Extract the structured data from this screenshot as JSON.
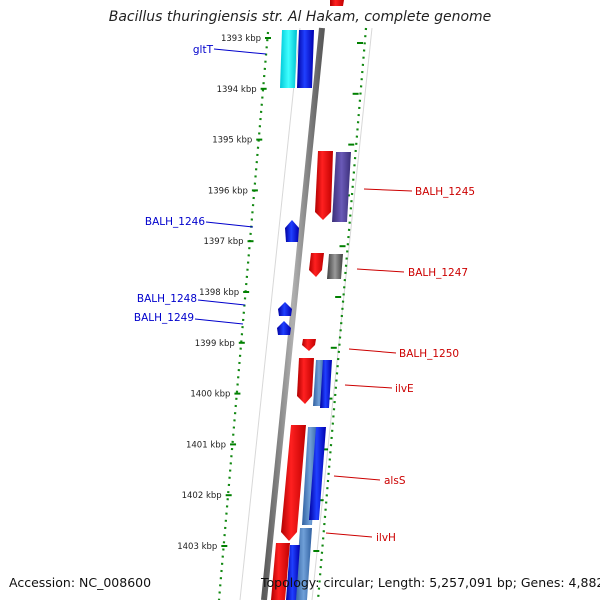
{
  "title": "Bacillus thuringiensis str. Al Hakam, complete genome",
  "accession_label": "Accession: NC_008600",
  "summary_label": "Topology: circular; Length: 5,257,091 bp; Genes: 4,882",
  "ticks": [
    {
      "kbp": 1393,
      "label": "1393 kbp"
    },
    {
      "kbp": 1394,
      "label": "1394 kbp"
    },
    {
      "kbp": 1395,
      "label": "1395 kbp"
    },
    {
      "kbp": 1396,
      "label": "1396 kbp"
    },
    {
      "kbp": 1397,
      "label": "1397 kbp"
    },
    {
      "kbp": 1398,
      "label": "1398 kbp"
    },
    {
      "kbp": 1399,
      "label": "1399 kbp"
    },
    {
      "kbp": 1400,
      "label": "1400 kbp"
    },
    {
      "kbp": 1401,
      "label": "1401 kbp"
    },
    {
      "kbp": 1402,
      "label": "1402 kbp"
    },
    {
      "kbp": 1403,
      "label": "1403 kbp"
    }
  ],
  "genes": [
    {
      "name": "gltT",
      "strand": "reverse",
      "color": "#0000cc"
    },
    {
      "name": "BALH_1246",
      "strand": "reverse",
      "color": "#0000cc"
    },
    {
      "name": "BALH_1248",
      "strand": "reverse",
      "color": "#0000cc"
    },
    {
      "name": "BALH_1249",
      "strand": "reverse",
      "color": "#0000cc"
    },
    {
      "name": "BALH_1245",
      "strand": "forward",
      "color": "#cc0000"
    },
    {
      "name": "BALH_1247",
      "strand": "forward",
      "color": "#cc0000"
    },
    {
      "name": "BALH_1250",
      "strand": "forward",
      "color": "#cc0000"
    },
    {
      "name": "ilvE",
      "strand": "forward",
      "color": "#cc0000"
    },
    {
      "name": "alsS",
      "strand": "forward",
      "color": "#cc0000"
    },
    {
      "name": "ilvH",
      "strand": "forward",
      "color": "#cc0000"
    }
  ],
  "colors": {
    "forward_strand": "#ee0000",
    "reverse_strand": "#0000ee",
    "backbone": "#808080",
    "tick_marks": "#008000",
    "reverse_label": "#0000cc",
    "forward_label": "#cc0000"
  }
}
